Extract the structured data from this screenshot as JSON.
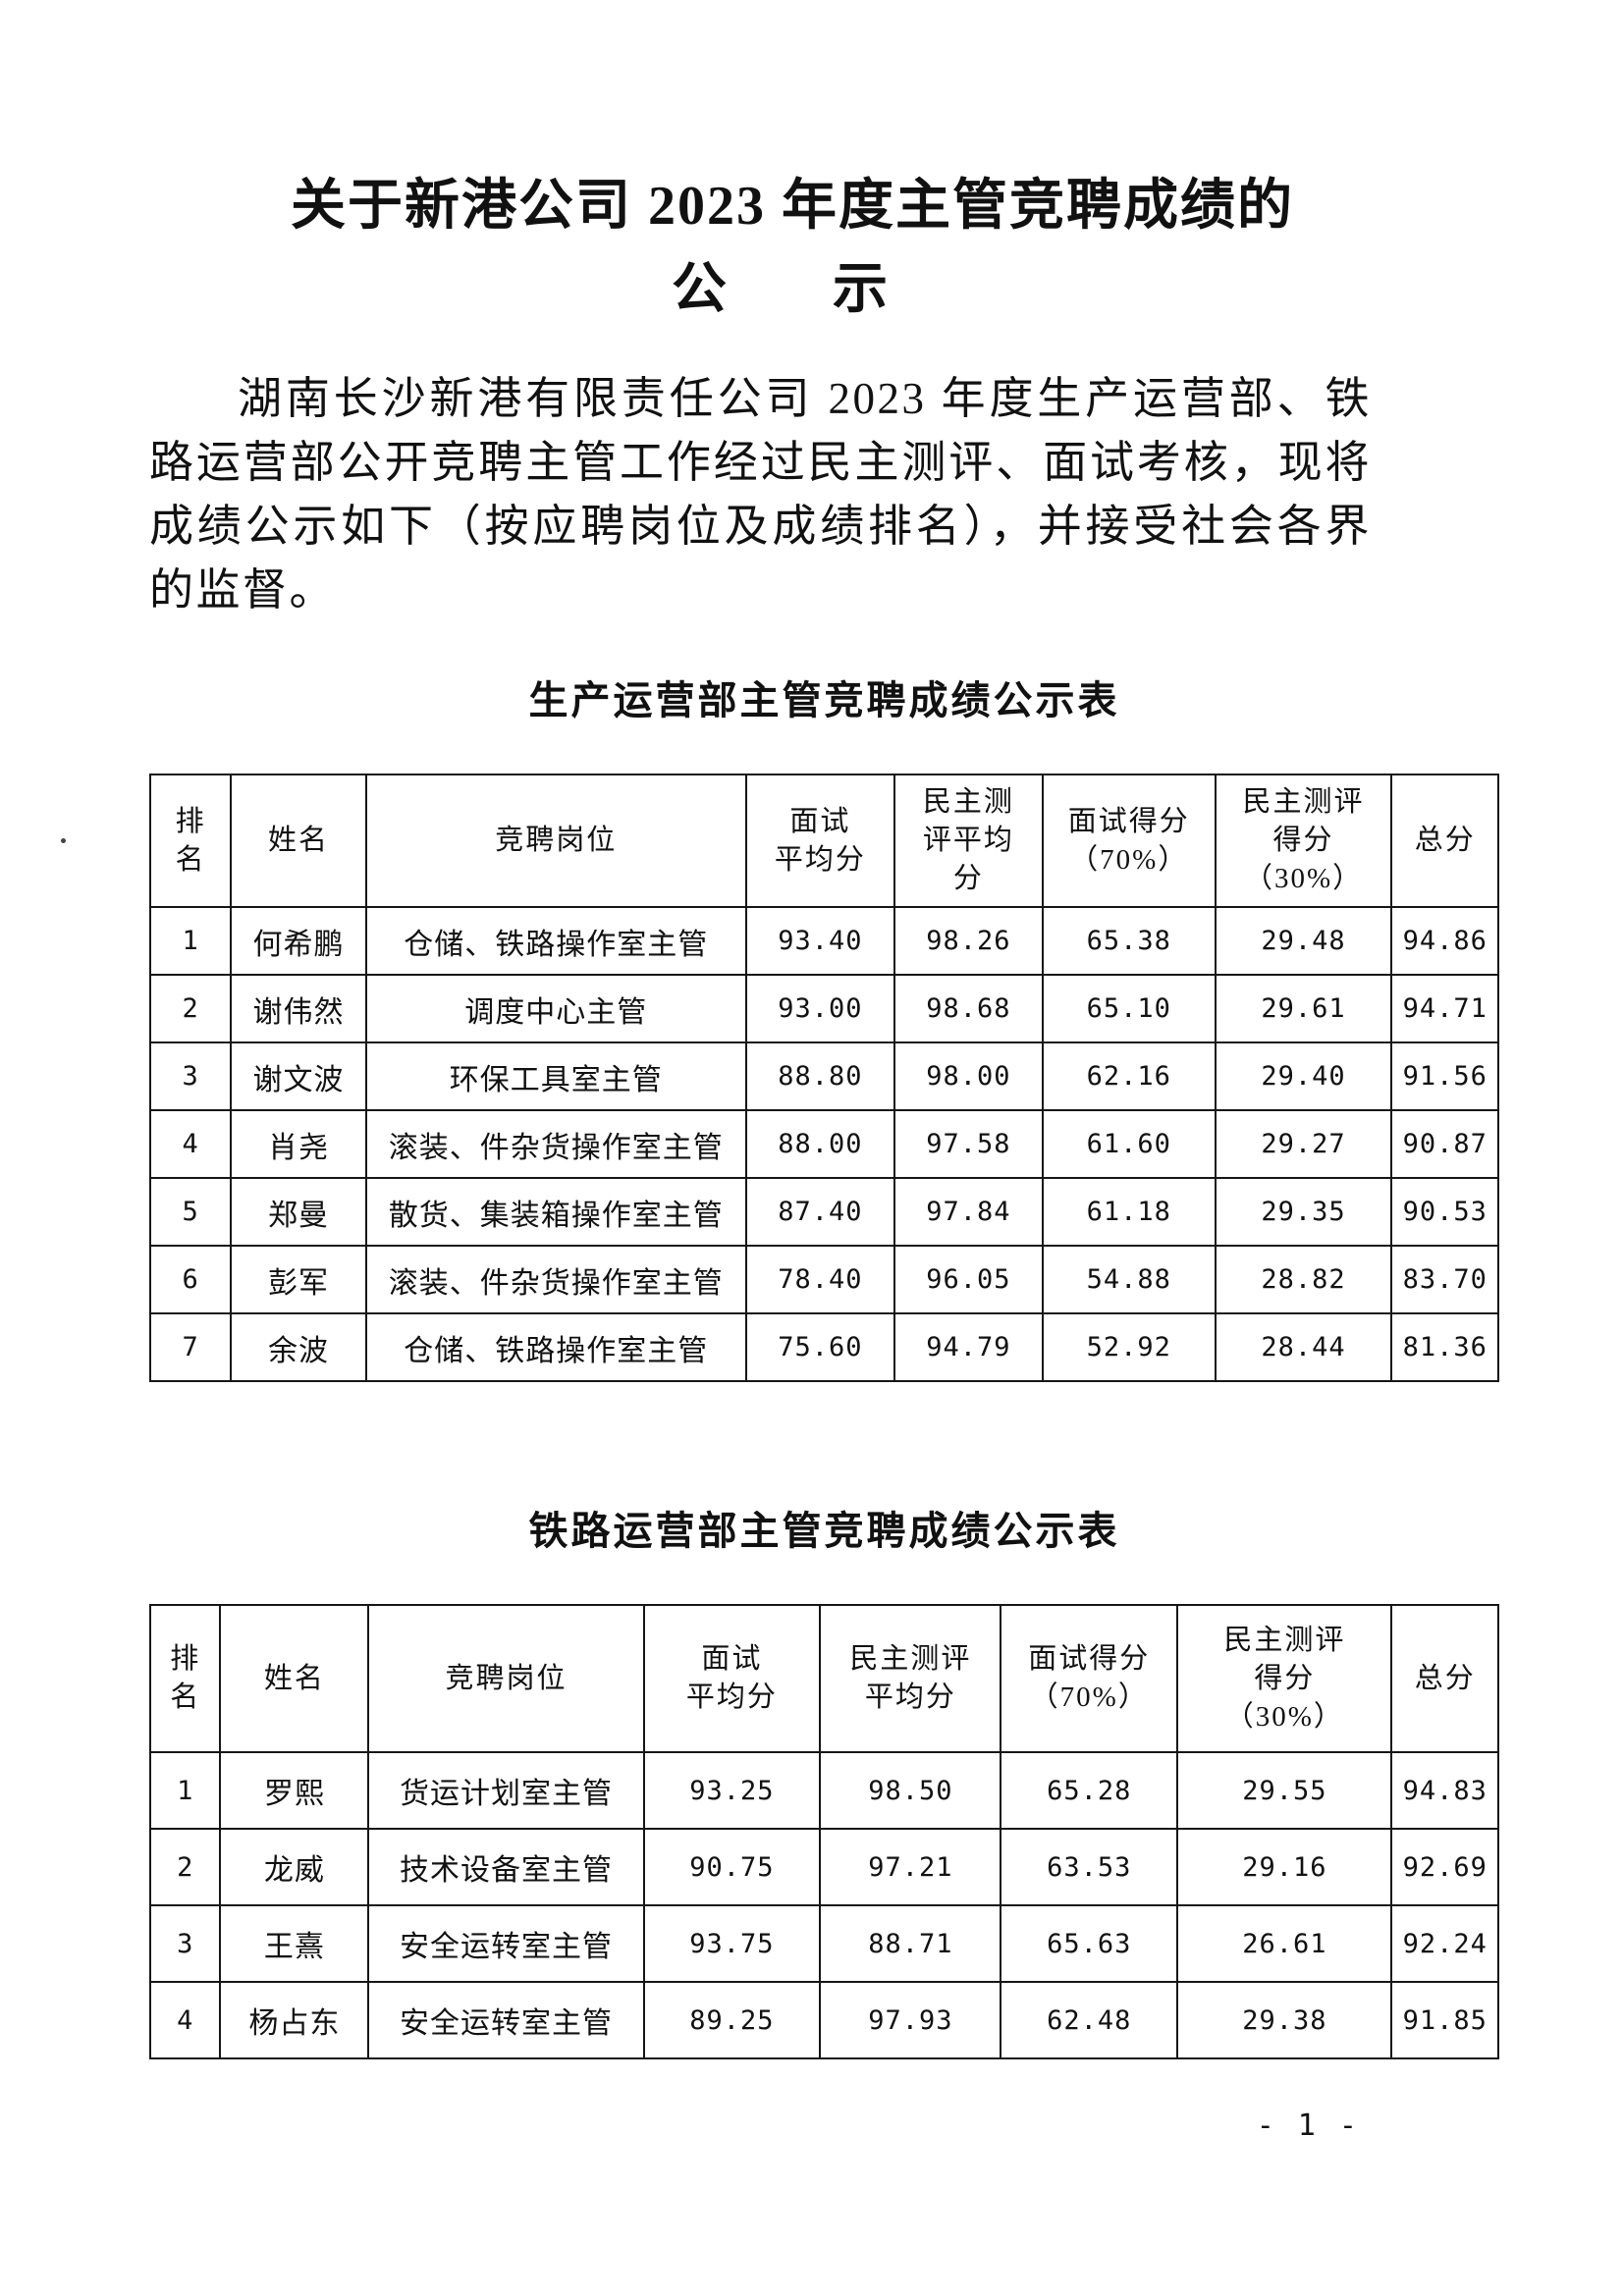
{
  "document": {
    "title_lines": [
      "关于新港公司 2023 年度主管竞聘成绩的",
      "公　示"
    ],
    "paragraph": "湖南长沙新港有限责任公司 2023 年度生产运营部、铁路运营部公开竞聘主管工作经过民主测评、面试考核，现将成绩公示如下（按应聘岗位及成绩排名），并接受社会各界的监督。",
    "page_number": "- 1 -"
  },
  "tables": [
    {
      "caption": "生产运营部主管竞聘成绩公示表",
      "headers": [
        [
          "排",
          "名"
        ],
        [
          "姓名"
        ],
        [
          "竞聘岗位"
        ],
        [
          "面试",
          "平均分"
        ],
        [
          "民主测",
          "评平均",
          "分"
        ],
        [
          "面试得分",
          "（70%）"
        ],
        [
          "民主测评",
          "得分",
          "（30%）"
        ],
        [
          "总分"
        ]
      ],
      "rows": [
        [
          "1",
          "何希鹏",
          "仓储、铁路操作室主管",
          "93.40",
          "98.26",
          "65.38",
          "29.48",
          "94.86"
        ],
        [
          "2",
          "谢伟然",
          "调度中心主管",
          "93.00",
          "98.68",
          "65.10",
          "29.61",
          "94.71"
        ],
        [
          "3",
          "谢文波",
          "环保工具室主管",
          "88.80",
          "98.00",
          "62.16",
          "29.40",
          "91.56"
        ],
        [
          "4",
          "肖尧",
          "滚装、件杂货操作室主管",
          "88.00",
          "97.58",
          "61.60",
          "29.27",
          "90.87"
        ],
        [
          "5",
          "郑曼",
          "散货、集装箱操作室主管",
          "87.40",
          "97.84",
          "61.18",
          "29.35",
          "90.53"
        ],
        [
          "6",
          "彭军",
          "滚装、件杂货操作室主管",
          "78.40",
          "96.05",
          "54.88",
          "28.82",
          "83.70"
        ],
        [
          "7",
          "余波",
          "仓储、铁路操作室主管",
          "75.60",
          "94.79",
          "52.92",
          "28.44",
          "81.36"
        ]
      ]
    },
    {
      "caption": "铁路运营部主管竞聘成绩公示表",
      "headers": [
        [
          "排",
          "名"
        ],
        [
          "姓名"
        ],
        [
          "竞聘岗位"
        ],
        [
          "面试",
          "平均分"
        ],
        [
          "民主测评",
          "平均分"
        ],
        [
          "面试得分",
          "（70%）"
        ],
        [
          "民主测评",
          "得分",
          "（30%）"
        ],
        [
          "总分"
        ]
      ],
      "rows": [
        [
          "1",
          "罗熙",
          "货运计划室主管",
          "93.25",
          "98.50",
          "65.28",
          "29.55",
          "94.83"
        ],
        [
          "2",
          "龙威",
          "技术设备室主管",
          "90.75",
          "97.21",
          "63.53",
          "29.16",
          "92.69"
        ],
        [
          "3",
          "王熹",
          "安全运转室主管",
          "93.75",
          "88.71",
          "65.63",
          "26.61",
          "92.24"
        ],
        [
          "4",
          "杨占东",
          "安全运转室主管",
          "89.25",
          "97.93",
          "62.48",
          "29.38",
          "91.85"
        ]
      ]
    }
  ]
}
